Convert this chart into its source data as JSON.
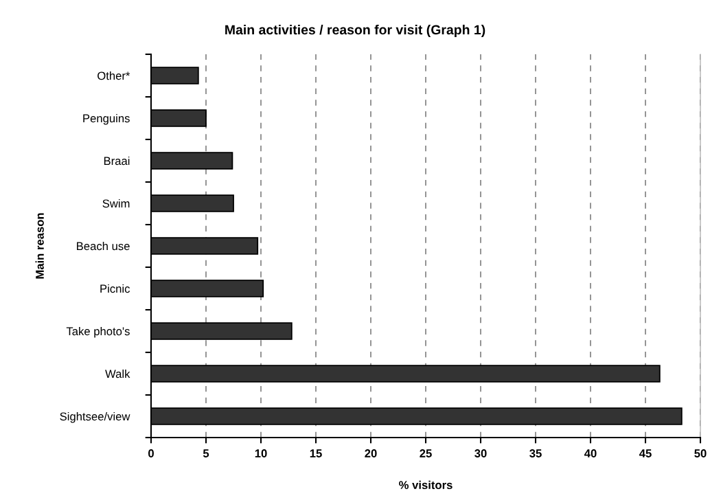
{
  "chart_data": {
    "type": "bar",
    "orientation": "horizontal",
    "title": "Main activities / reason for visit (Graph 1)",
    "xlabel": "% visitors",
    "ylabel": "Main reason",
    "categories": [
      "Other*",
      "Penguins",
      "Braai",
      "Swim",
      "Beach use",
      "Picnic",
      "Take photo's",
      "Walk",
      "Sightsee/view"
    ],
    "values": [
      4.3,
      5.0,
      7.4,
      7.5,
      9.7,
      10.2,
      12.8,
      46.3,
      48.3
    ],
    "color": "#333333",
    "xlim": [
      0,
      50
    ],
    "xticks": [
      0,
      5,
      10,
      15,
      20,
      25,
      30,
      35,
      40,
      45,
      50
    ],
    "grid": "x"
  }
}
